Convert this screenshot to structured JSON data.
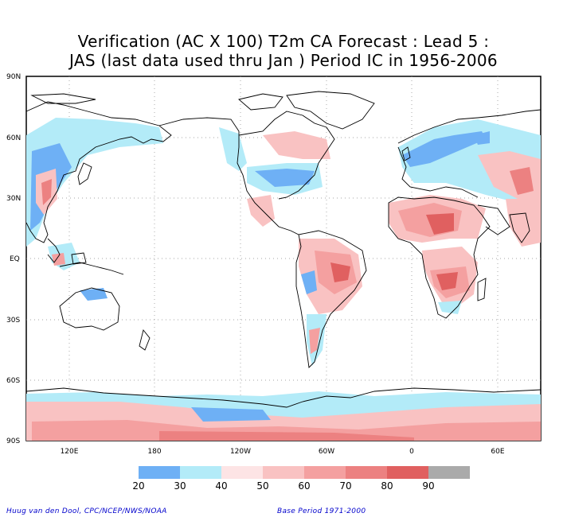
{
  "title_line1": "Verification (AC X 100) T2m CA Forecast : Lead 5 :",
  "title_line2": "JAS (last data used thru Jan ) Period IC in 1956-2006",
  "lat_labels": [
    "90N",
    "60N",
    "30N",
    "EQ",
    "30S",
    "60S",
    "90S"
  ],
  "lon_labels": [
    "120E",
    "180",
    "120W",
    "60W",
    "0",
    "60E"
  ],
  "legend": {
    "colors": [
      "#6eb0f5",
      "#b3ebf8",
      "#fde4e5",
      "#f9c2c2",
      "#f4a0a0",
      "#ec8181",
      "#e06060",
      "#aaaaaa"
    ],
    "ticks": [
      "20",
      "30",
      "40",
      "50",
      "60",
      "70",
      "80",
      "90"
    ]
  },
  "footer_left": "Huug van den Dool, CPC/NCEP/NWS/NOAA",
  "footer_right": "Base Period 1971-2000",
  "colors": {
    "blue_dark": "#6eb0f5",
    "blue_light": "#b3ebf8",
    "pink_light": "#f9c2c2",
    "red": "#e06060"
  }
}
